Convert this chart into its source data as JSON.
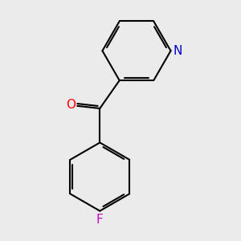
{
  "background_color": "#ebebeb",
  "bond_color": "#000000",
  "bond_width": 1.5,
  "atom_colors": {
    "O": "#ff0000",
    "N": "#0000cc",
    "F": "#cc00cc"
  },
  "font_size_atoms": 11
}
